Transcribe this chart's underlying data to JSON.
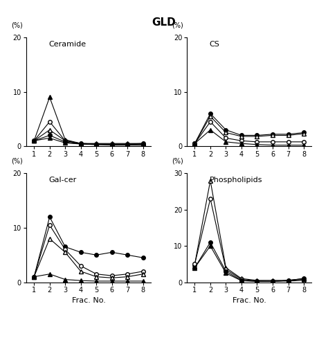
{
  "title": "GLD",
  "x": [
    1,
    2,
    3,
    4,
    5,
    6,
    7,
    8
  ],
  "ceramide": {
    "label": "Ceramide",
    "ylim": [
      0,
      20
    ],
    "yticks": [
      0,
      10,
      20
    ],
    "series": [
      {
        "y": [
          1.0,
          9.0,
          1.2,
          0.5,
          0.5,
          0.5,
          0.5,
          0.5
        ],
        "marker": "^",
        "filled": true
      },
      {
        "y": [
          1.0,
          4.5,
          1.0,
          0.5,
          0.4,
          0.4,
          0.4,
          0.5
        ],
        "marker": "o",
        "filled": false
      },
      {
        "y": [
          1.0,
          3.0,
          1.0,
          0.5,
          0.4,
          0.3,
          0.3,
          0.5
        ],
        "marker": "^",
        "filled": false
      },
      {
        "y": [
          1.0,
          2.0,
          0.8,
          0.4,
          0.3,
          0.3,
          0.3,
          0.3
        ],
        "marker": "o",
        "filled": true
      },
      {
        "y": [
          1.0,
          1.5,
          0.6,
          0.4,
          0.3,
          0.2,
          0.2,
          0.2
        ],
        "marker": "^",
        "filled": true
      }
    ]
  },
  "cs": {
    "label": "CS",
    "ylim": [
      0,
      20
    ],
    "yticks": [
      0,
      10,
      20
    ],
    "series": [
      {
        "y": [
          0.5,
          6.0,
          3.0,
          2.0,
          2.0,
          2.2,
          2.2,
          2.5
        ],
        "marker": "o",
        "filled": true
      },
      {
        "y": [
          0.5,
          5.5,
          2.5,
          1.8,
          1.8,
          2.0,
          2.0,
          2.3
        ],
        "marker": "^",
        "filled": false
      },
      {
        "y": [
          0.5,
          4.5,
          1.5,
          1.0,
          0.8,
          0.8,
          0.8,
          0.8
        ],
        "marker": "o",
        "filled": false
      },
      {
        "y": [
          0.5,
          3.0,
          0.8,
          0.5,
          0.3,
          0.2,
          0.2,
          0.2
        ],
        "marker": "^",
        "filled": true
      }
    ]
  },
  "galcer": {
    "label": "Gal-cer",
    "ylim": [
      0,
      20
    ],
    "yticks": [
      0,
      10,
      20
    ],
    "series": [
      {
        "y": [
          1.0,
          12.0,
          6.5,
          5.5,
          5.0,
          5.5,
          5.0,
          4.5
        ],
        "marker": "o",
        "filled": true
      },
      {
        "y": [
          1.0,
          10.5,
          6.0,
          3.0,
          1.5,
          1.2,
          1.5,
          2.0
        ],
        "marker": "o",
        "filled": false
      },
      {
        "y": [
          1.0,
          8.0,
          5.5,
          2.0,
          1.0,
          0.8,
          1.0,
          1.5
        ],
        "marker": "^",
        "filled": false
      },
      {
        "y": [
          1.0,
          1.5,
          0.5,
          0.3,
          0.2,
          0.2,
          0.2,
          0.2
        ],
        "marker": "^",
        "filled": true
      }
    ]
  },
  "phospholipids": {
    "label": "Phospholipids",
    "ylim": [
      0,
      30
    ],
    "yticks": [
      0,
      10,
      20,
      30
    ],
    "series": [
      {
        "y": [
          5.0,
          28.0,
          4.0,
          1.0,
          0.5,
          0.5,
          0.5,
          1.0
        ],
        "marker": "^",
        "filled": false
      },
      {
        "y": [
          5.0,
          23.0,
          3.5,
          0.8,
          0.3,
          0.3,
          0.3,
          0.5
        ],
        "marker": "o",
        "filled": false
      },
      {
        "y": [
          4.0,
          11.0,
          3.0,
          0.5,
          0.3,
          0.2,
          0.5,
          1.0
        ],
        "marker": "o",
        "filled": true
      },
      {
        "y": [
          4.0,
          10.0,
          2.5,
          0.4,
          0.2,
          0.2,
          0.5,
          0.8
        ],
        "marker": "^",
        "filled": true
      }
    ]
  },
  "color": "black",
  "markersize": 4,
  "linewidth": 0.8,
  "label_fontsize": 8,
  "tick_fontsize": 7,
  "pct_fontsize": 7
}
